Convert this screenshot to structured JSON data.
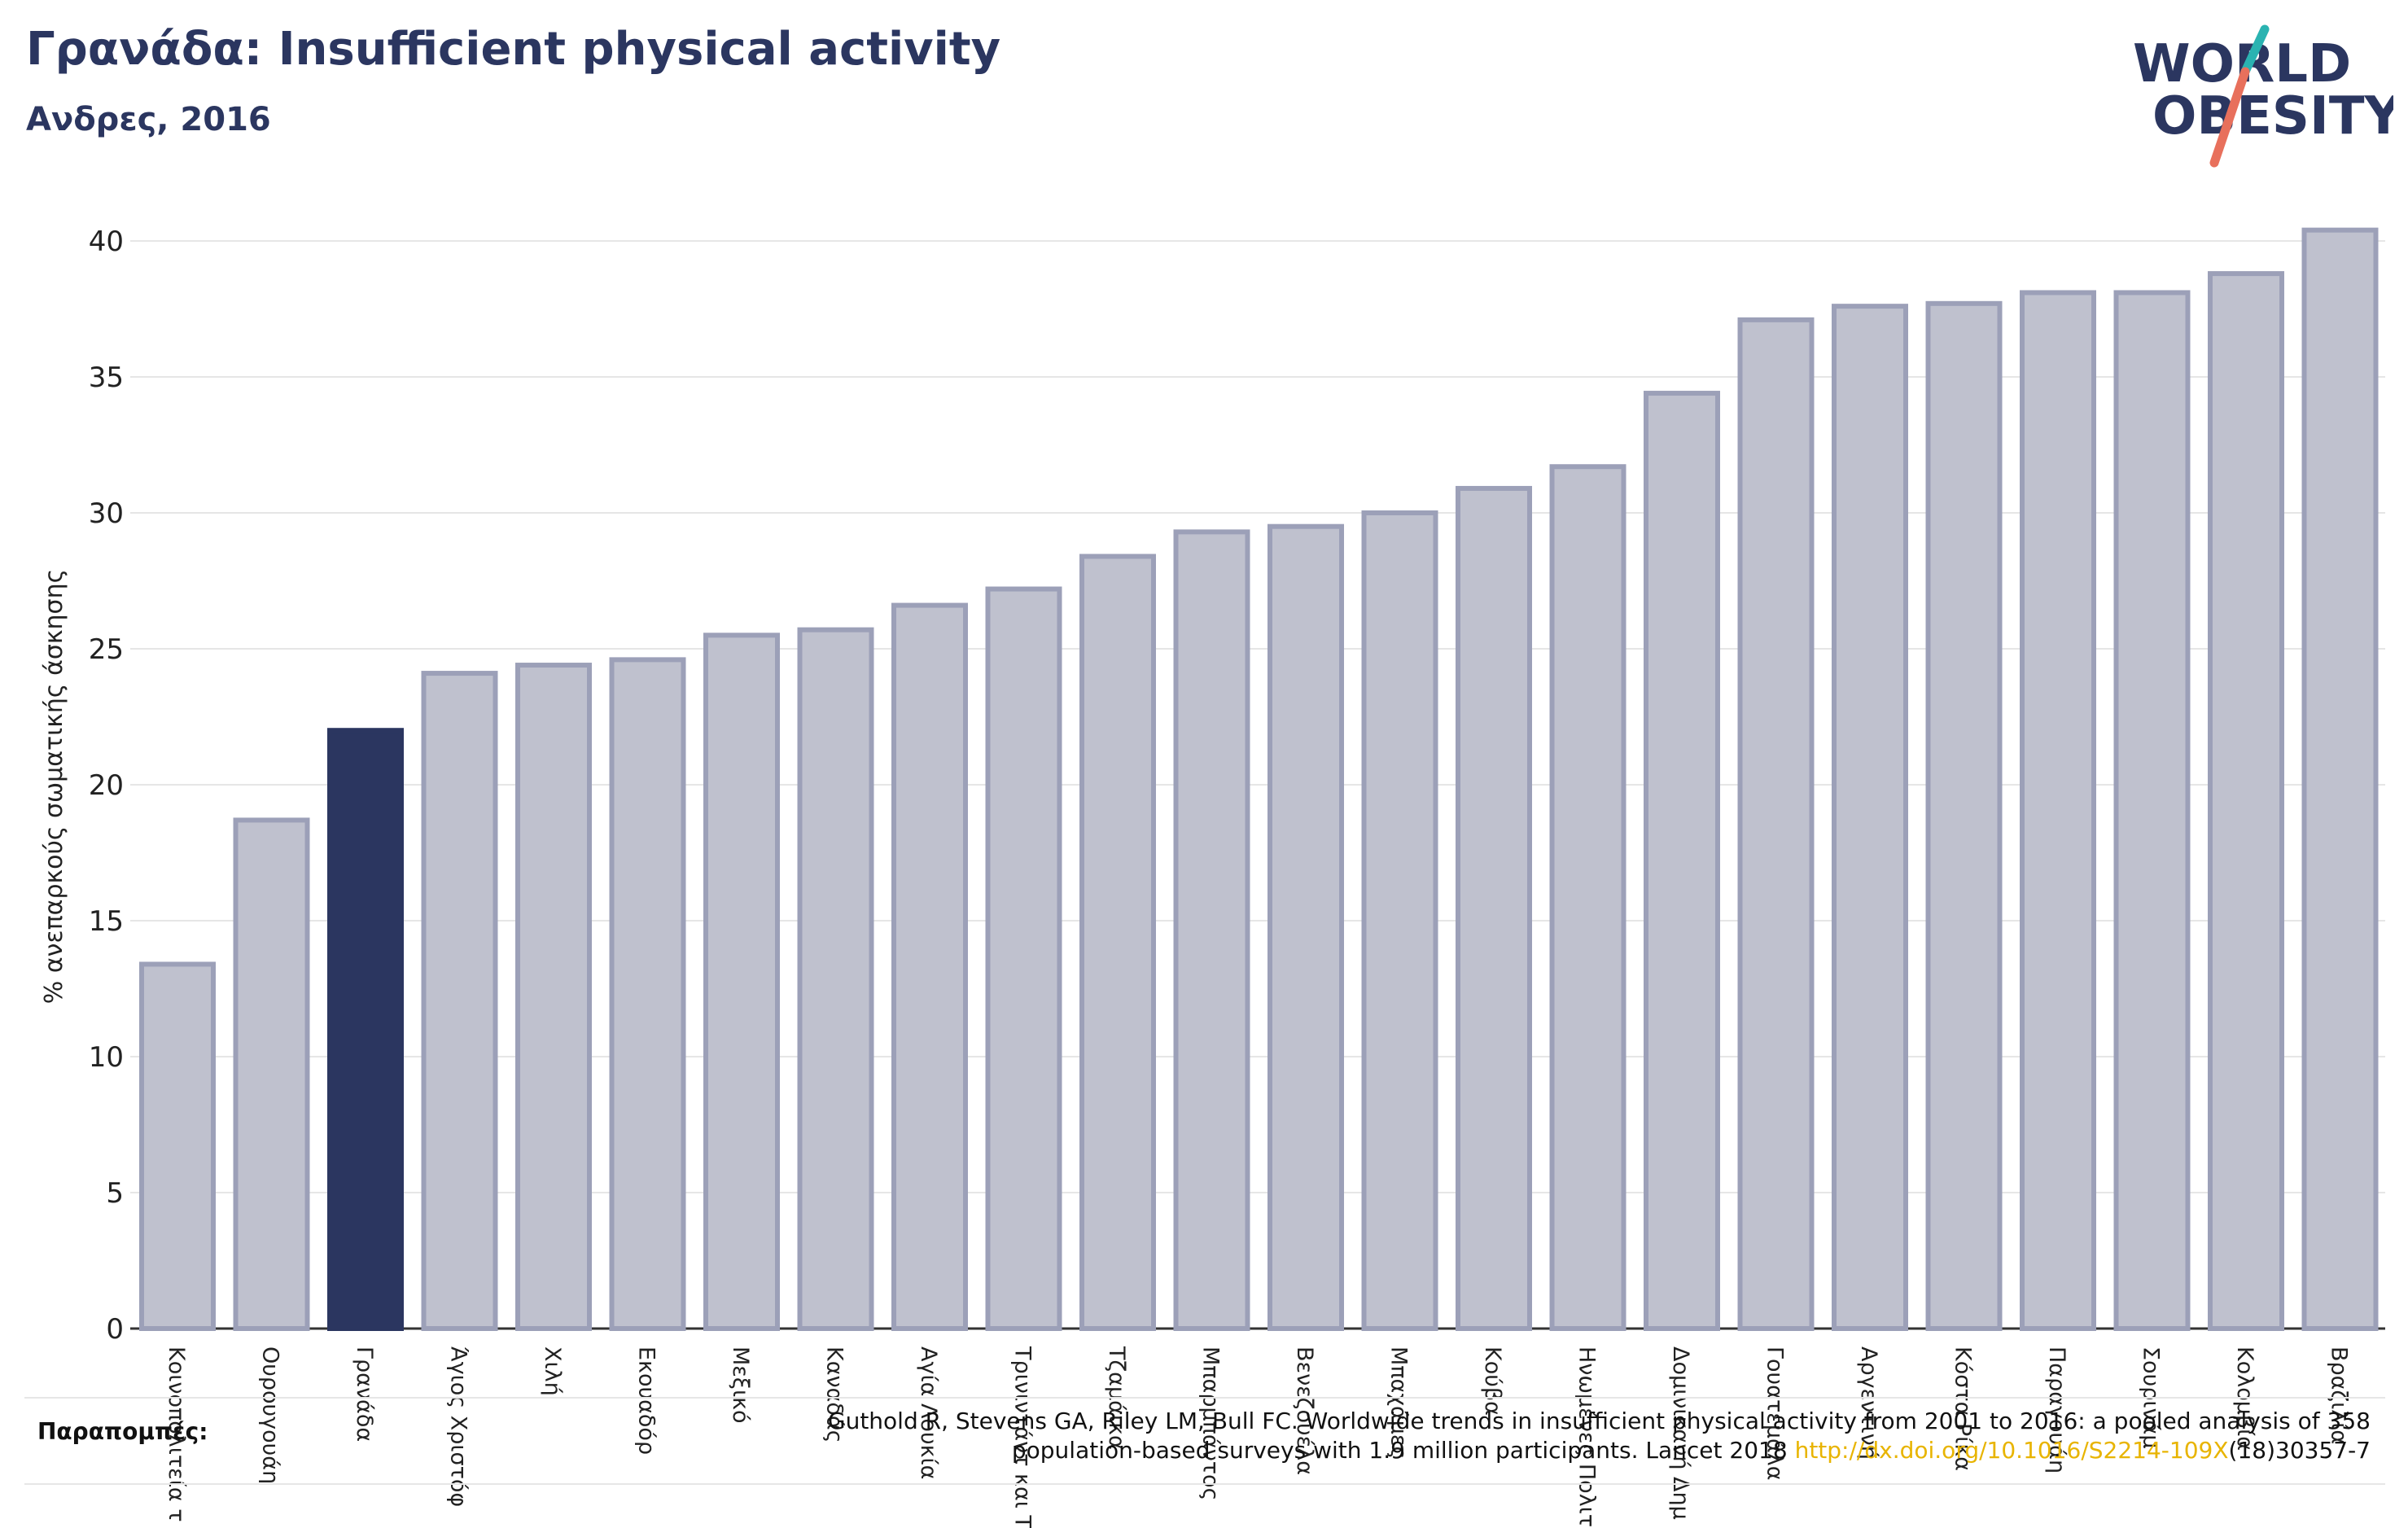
{
  "header": {
    "title": "Γρανάδα: Insufficient physical activity",
    "subtitle": "Ανδρες, 2016"
  },
  "logo": {
    "line1": "WORLD",
    "line2": "OBESITY"
  },
  "colors": {
    "highlight": "#2b3660",
    "bar_fill": "#bfc1ce",
    "bar_stroke": "#9ca0b8",
    "logo_teal": "#2ab3b1",
    "logo_coral": "#e8705c"
  },
  "footer": {
    "refs_label": "Παραπομπές:",
    "refs_text_1": "Guthold R, Stevens GA, Riley LM, Bull FC. Worldwide trends in insufficient physical activity from 2001 to 2016: a pooled analysis of 358",
    "refs_text_2": "population-based surveys with 1.9 million participants. Lancet 2018",
    "refs_link": "http://dx.doi.org/10.1016/S2214-109X",
    "refs_tail": "(18)30357-7"
  },
  "chart_data": {
    "type": "bar",
    "ylabel": "% ανεπαρκούς σωματικής άσκησης",
    "ylim": [
      0,
      40
    ],
    "yticks": [
      0,
      5,
      10,
      15,
      20,
      25,
      30,
      35,
      40
    ],
    "highlight_category": "Γρανάδα",
    "categories": [
      "Κοινοπολιτεία τ",
      "Ουρουγουάη",
      "Γρανάδα",
      "Άγιος Χριστόφ",
      "Χιλή",
      "Εκουαδόρ",
      "Μεξικό",
      "Καναδάς",
      "Αγία Λουκία",
      "Τρινιντάντ και Τ",
      "Τζαμάικα",
      "Μπαρμπάντος",
      "Βενεζουέλα",
      "Μπαχάμες",
      "Κούβα",
      "Ηνωμένες Πολιτ",
      "Δομινικανή Δημ",
      "Γουατεμάλα",
      "Αργεντινή",
      "Κόστα Ρίκα",
      "Παραγουάη",
      "Σουρινάμ",
      "Κολομβία",
      "Βραζιλία"
    ],
    "values": [
      13.4,
      18.7,
      22.0,
      24.1,
      24.4,
      24.6,
      25.5,
      25.7,
      26.6,
      27.2,
      28.4,
      29.3,
      29.5,
      30.0,
      30.9,
      31.7,
      34.4,
      37.1,
      37.6,
      37.7,
      38.1,
      38.1,
      38.8,
      40.4
    ]
  }
}
